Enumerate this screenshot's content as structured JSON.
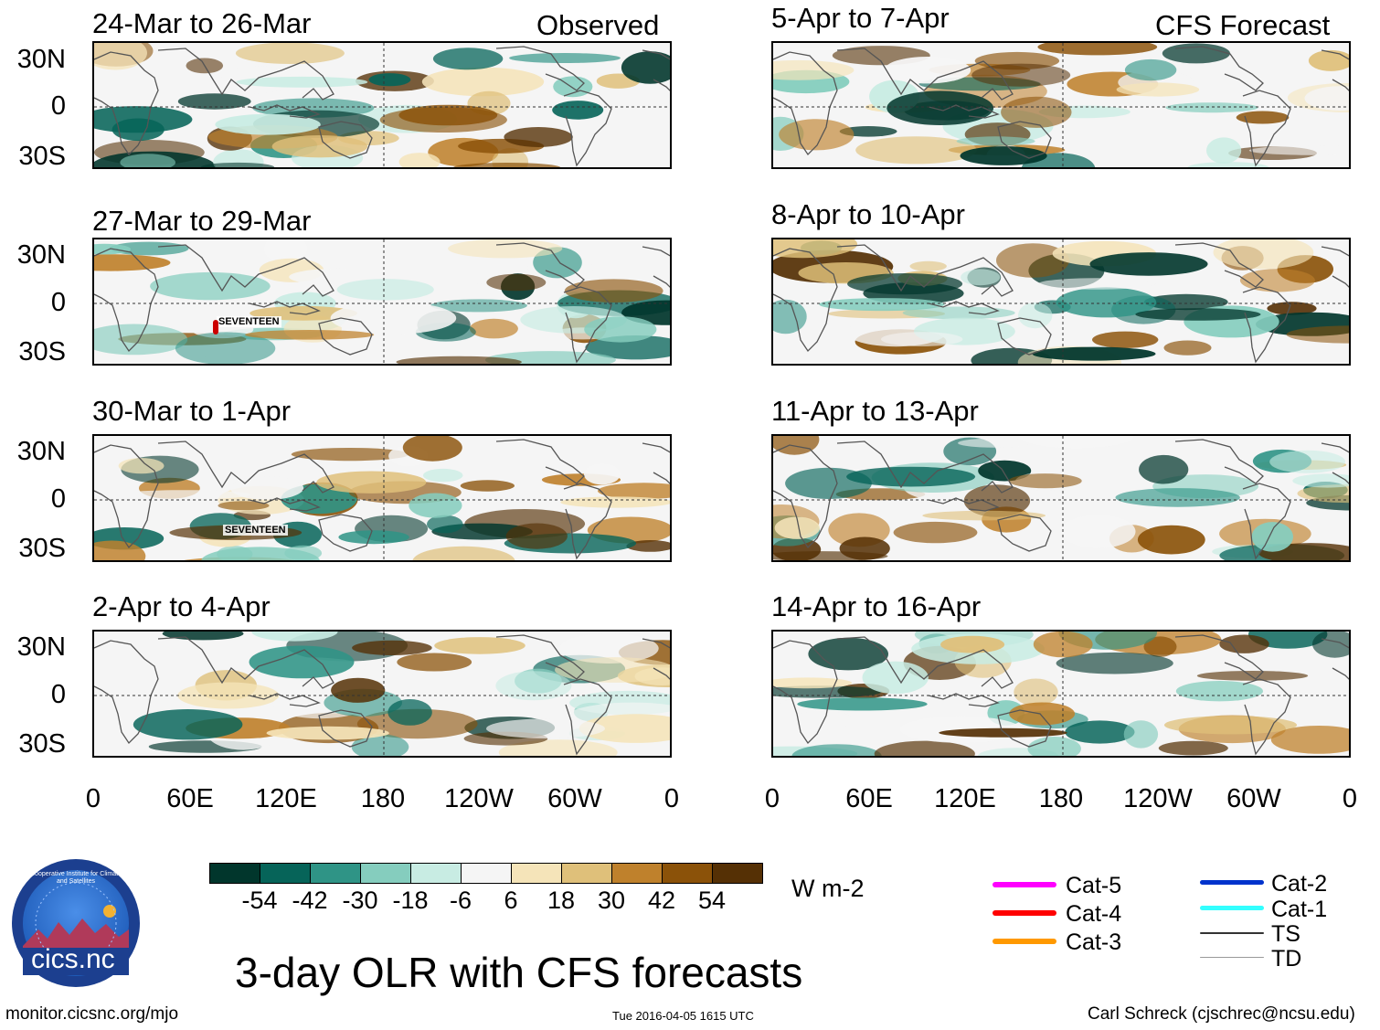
{
  "header": {
    "left_label": "Observed",
    "right_label": "CFS Forecast"
  },
  "observed_panels": [
    {
      "title": "24-Mar to 26-Mar"
    },
    {
      "title": "27-Mar to 29-Mar",
      "storm_label": "SEVENTEEN"
    },
    {
      "title": "30-Mar to 1-Apr",
      "storm_label": "SEVENTEEN"
    },
    {
      "title": "2-Apr to 4-Apr"
    }
  ],
  "forecast_panels": [
    {
      "title": "5-Apr to 7-Apr"
    },
    {
      "title": "8-Apr to 10-Apr"
    },
    {
      "title": "11-Apr to 13-Apr"
    },
    {
      "title": "14-Apr to 16-Apr"
    }
  ],
  "axes": {
    "y_ticks": [
      "30N",
      "0",
      "30S"
    ],
    "x_ticks": [
      "0",
      "60E",
      "120E",
      "180",
      "120W",
      "60W",
      "0"
    ]
  },
  "colorbar": {
    "unit": "W m-2",
    "labels": [
      "-54",
      "-42",
      "-30",
      "-18",
      "-6",
      "6",
      "18",
      "30",
      "42",
      "54"
    ],
    "colors": [
      "#01362c",
      "#066459",
      "#2f9486",
      "#85cdbe",
      "#c8ece3",
      "#f5f5f5",
      "#f5e4b9",
      "#dfc07a",
      "#bf812c",
      "#8b5209",
      "#553005"
    ]
  },
  "legend": {
    "items": [
      {
        "label": "Cat-5",
        "color": "#ff00ff"
      },
      {
        "label": "Cat-4",
        "color": "#ff0000"
      },
      {
        "label": "Cat-3",
        "color": "#ff9900"
      },
      {
        "label": "Cat-2",
        "color": "#0033cc"
      },
      {
        "label": "Cat-1",
        "color": "#33ffff"
      },
      {
        "label": "TS",
        "color": "#333333"
      },
      {
        "label": "TD",
        "color": "#999999"
      }
    ]
  },
  "logo": {
    "text": "cics.nc",
    "ring_text": "Cooperative Institute for Climate and Satellites"
  },
  "main_title": "3-day OLR with CFS forecasts",
  "footer": {
    "url": "monitor.cicsnc.org/mjo",
    "timestamp": "Tue 2016-04-05 1615 UTC",
    "author": "Carl Schreck (cjschrec@ncsu.edu)"
  }
}
